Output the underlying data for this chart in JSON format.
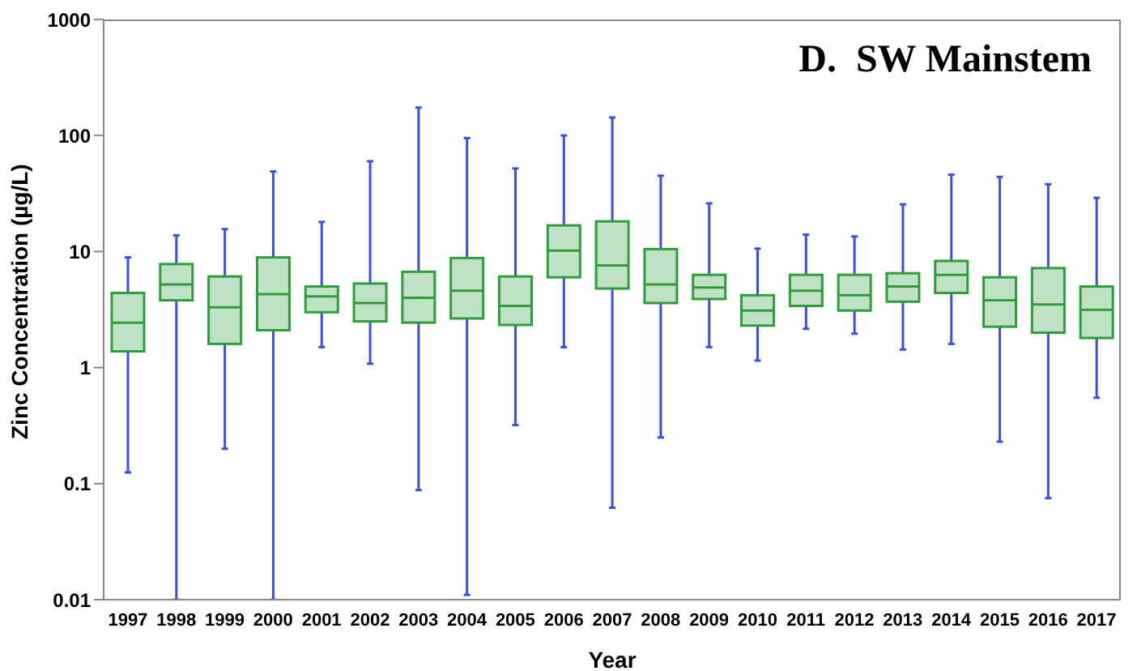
{
  "chart_data": {
    "type": "box",
    "title": "D.  SW Mainstem",
    "xlabel": "Year",
    "ylabel": "Zinc Concentration (µg/L)",
    "log": true,
    "ylim": [
      0.01,
      1000
    ],
    "yticks": [
      0.01,
      0.1,
      1,
      10,
      100,
      1000
    ],
    "color": "#2e9e3a",
    "grid": false,
    "categories": [
      "1997",
      "1998",
      "1999",
      "2000",
      "2001",
      "2002",
      "2003",
      "2004",
      "2005",
      "2006",
      "2007",
      "2008",
      "2009",
      "2010",
      "2011",
      "2012",
      "2013",
      "2014",
      "2015",
      "2016",
      "2017"
    ],
    "boxes": [
      {
        "low": 0.125,
        "q1": 1.38,
        "median": 2.44,
        "q3": 4.4,
        "high": 8.9
      },
      {
        "low": 0.01,
        "q1": 3.8,
        "median": 5.2,
        "q3": 7.8,
        "high": 13.8
      },
      {
        "low": 0.2,
        "q1": 1.6,
        "median": 3.3,
        "q3": 6.1,
        "high": 15.6
      },
      {
        "low": 0.01,
        "q1": 2.1,
        "median": 4.3,
        "q3": 8.9,
        "high": 49
      },
      {
        "low": 1.5,
        "q1": 3.0,
        "median": 4.1,
        "q3": 5.0,
        "high": 18
      },
      {
        "low": 1.08,
        "q1": 2.5,
        "median": 3.6,
        "q3": 5.3,
        "high": 60
      },
      {
        "low": 0.088,
        "q1": 2.44,
        "median": 4.0,
        "q3": 6.7,
        "high": 174
      },
      {
        "low": 0.011,
        "q1": 2.65,
        "median": 4.6,
        "q3": 8.8,
        "high": 95
      },
      {
        "low": 0.32,
        "q1": 2.33,
        "median": 3.4,
        "q3": 6.1,
        "high": 52
      },
      {
        "low": 1.5,
        "q1": 6.0,
        "median": 10.2,
        "q3": 16.8,
        "high": 100
      },
      {
        "low": 0.062,
        "q1": 4.8,
        "median": 7.6,
        "q3": 18.2,
        "high": 143
      },
      {
        "low": 0.25,
        "q1": 3.6,
        "median": 5.2,
        "q3": 10.5,
        "high": 45
      },
      {
        "low": 1.5,
        "q1": 3.9,
        "median": 4.9,
        "q3": 6.3,
        "high": 26
      },
      {
        "low": 1.15,
        "q1": 2.3,
        "median": 3.1,
        "q3": 4.2,
        "high": 10.6
      },
      {
        "low": 2.16,
        "q1": 3.4,
        "median": 4.6,
        "q3": 6.3,
        "high": 14
      },
      {
        "low": 1.96,
        "q1": 3.1,
        "median": 4.2,
        "q3": 6.3,
        "high": 13.5
      },
      {
        "low": 1.43,
        "q1": 3.7,
        "median": 5.0,
        "q3": 6.5,
        "high": 25.5
      },
      {
        "low": 1.6,
        "q1": 4.4,
        "median": 6.3,
        "q3": 8.3,
        "high": 46
      },
      {
        "low": 0.23,
        "q1": 2.25,
        "median": 3.8,
        "q3": 6.0,
        "high": 44
      },
      {
        "low": 0.075,
        "q1": 2.0,
        "median": 3.5,
        "q3": 7.2,
        "high": 38
      },
      {
        "low": 0.55,
        "q1": 1.8,
        "median": 3.15,
        "q3": 5.0,
        "high": 29
      }
    ]
  }
}
